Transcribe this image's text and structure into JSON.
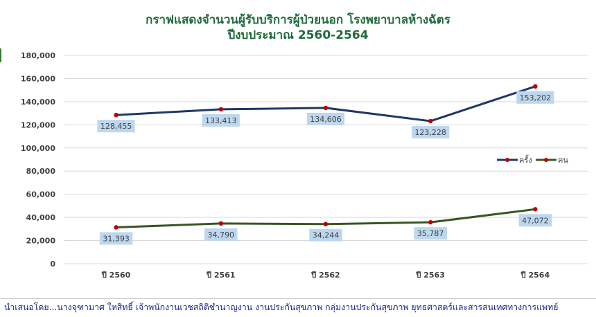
{
  "chart_data": {
    "type": "line",
    "title": "กราฟแสดงจำนวนผู้รับบริการผู้ป่วยนอก โรงพยาบาลห้างฉัตร",
    "subtitle": "ปีงบประมาณ 2560-2564",
    "categories": [
      "ปี 2560",
      "ปี 2561",
      "ปี 2562",
      "ปี 2563",
      "ปี 2564"
    ],
    "series": [
      {
        "name": "ครั้ง",
        "values": [
          128455,
          133413,
          134606,
          123228,
          153202
        ],
        "color": "#1f3864",
        "marker_color": "#c00000",
        "label_position": "below"
      },
      {
        "name": "คน",
        "values": [
          31393,
          34790,
          34244,
          35787,
          47072
        ],
        "color": "#375623",
        "marker_color": "#c00000",
        "label_position": "below"
      }
    ],
    "data_labels": [
      [
        "128,455",
        "133,413",
        "134,606",
        "123,228",
        "153,202"
      ],
      [
        "31,393",
        "34,790",
        "34,244",
        "35,787",
        "47,072"
      ]
    ],
    "y_ticks": [
      "0",
      "20,000",
      "40,000",
      "60,000",
      "80,000",
      "100,000",
      "120,000",
      "140,000",
      "160,000",
      "180,000"
    ],
    "ylim": [
      0,
      180000
    ],
    "y_step": 20000,
    "grid": true,
    "grid_color": "#d9d9d9",
    "data_label_bg": "#bdd7ee",
    "legend_position": "right"
  },
  "footer": {
    "note": "นำเสนอโดย...นางจุฑามาศ ใหสิทธิ์ เจ้าพนักงานเวชสถิติชำนาญงาน งานประกันสุขภาพ กลุ่มงานประกันสุขภาพ ยุทธศาสตร์และสารสนเทศทางการแพทย์"
  }
}
